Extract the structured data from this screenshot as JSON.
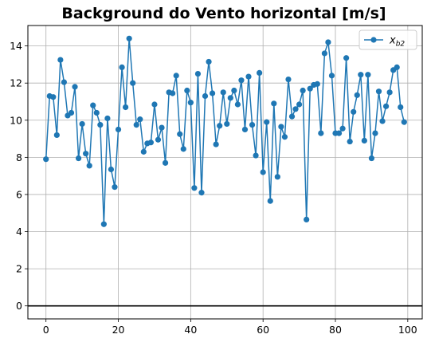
{
  "chart_data": {
    "type": "line",
    "title": "Background do Vento horizontal [m/s]",
    "xlabel": "",
    "ylabel": "",
    "xlim": [
      -5,
      104
    ],
    "ylim": [
      -0.7,
      15.1
    ],
    "xticks": [
      0,
      20,
      40,
      60,
      80,
      100
    ],
    "yticks": [
      0,
      2,
      4,
      6,
      8,
      10,
      12,
      14
    ],
    "grid": true,
    "legend_position": "top-right",
    "hline_y": 0,
    "series": [
      {
        "name": "x_b2",
        "color": "#1f77b4",
        "marker": "circle",
        "x": [
          0,
          1,
          2,
          3,
          4,
          5,
          6,
          7,
          8,
          9,
          10,
          11,
          12,
          13,
          14,
          15,
          16,
          17,
          18,
          19,
          20,
          21,
          22,
          23,
          24,
          25,
          26,
          27,
          28,
          29,
          30,
          31,
          32,
          33,
          34,
          35,
          36,
          37,
          38,
          39,
          40,
          41,
          42,
          43,
          44,
          45,
          46,
          47,
          48,
          49,
          50,
          51,
          52,
          53,
          54,
          55,
          56,
          57,
          58,
          59,
          60,
          61,
          62,
          63,
          64,
          65,
          66,
          67,
          68,
          69,
          70,
          71,
          72,
          73,
          74,
          75,
          76,
          77,
          78,
          79,
          80,
          81,
          82,
          83,
          84,
          85,
          86,
          87,
          88,
          89,
          90,
          91,
          92,
          93,
          94,
          95,
          96,
          97,
          98,
          99
        ],
        "y": [
          7.9,
          11.3,
          11.25,
          9.2,
          13.25,
          12.05,
          10.25,
          10.4,
          11.8,
          7.95,
          9.8,
          8.2,
          7.55,
          10.8,
          10.4,
          9.75,
          4.4,
          10.1,
          7.35,
          6.4,
          9.5,
          12.85,
          10.7,
          14.4,
          12.0,
          9.75,
          10.05,
          8.3,
          8.75,
          8.8,
          10.85,
          8.95,
          9.6,
          7.7,
          11.5,
          11.45,
          12.4,
          9.25,
          8.45,
          11.6,
          10.95,
          6.35,
          12.5,
          6.1,
          11.3,
          13.15,
          11.45,
          8.7,
          9.7,
          11.5,
          9.8,
          11.2,
          11.6,
          10.85,
          12.15,
          9.5,
          12.35,
          9.75,
          8.1,
          12.55,
          7.2,
          9.9,
          5.65,
          10.9,
          6.95,
          9.65,
          9.1,
          12.2,
          10.2,
          10.6,
          10.85,
          11.6,
          4.65,
          11.7,
          11.9,
          11.95,
          9.3,
          13.6,
          14.2,
          12.4,
          9.3,
          9.3,
          9.55,
          13.35,
          8.85,
          10.45,
          11.35,
          12.45,
          8.9,
          12.45,
          7.95,
          9.3,
          11.55,
          9.95,
          10.75,
          11.5,
          12.7,
          12.85,
          10.7,
          9.9
        ]
      }
    ]
  }
}
